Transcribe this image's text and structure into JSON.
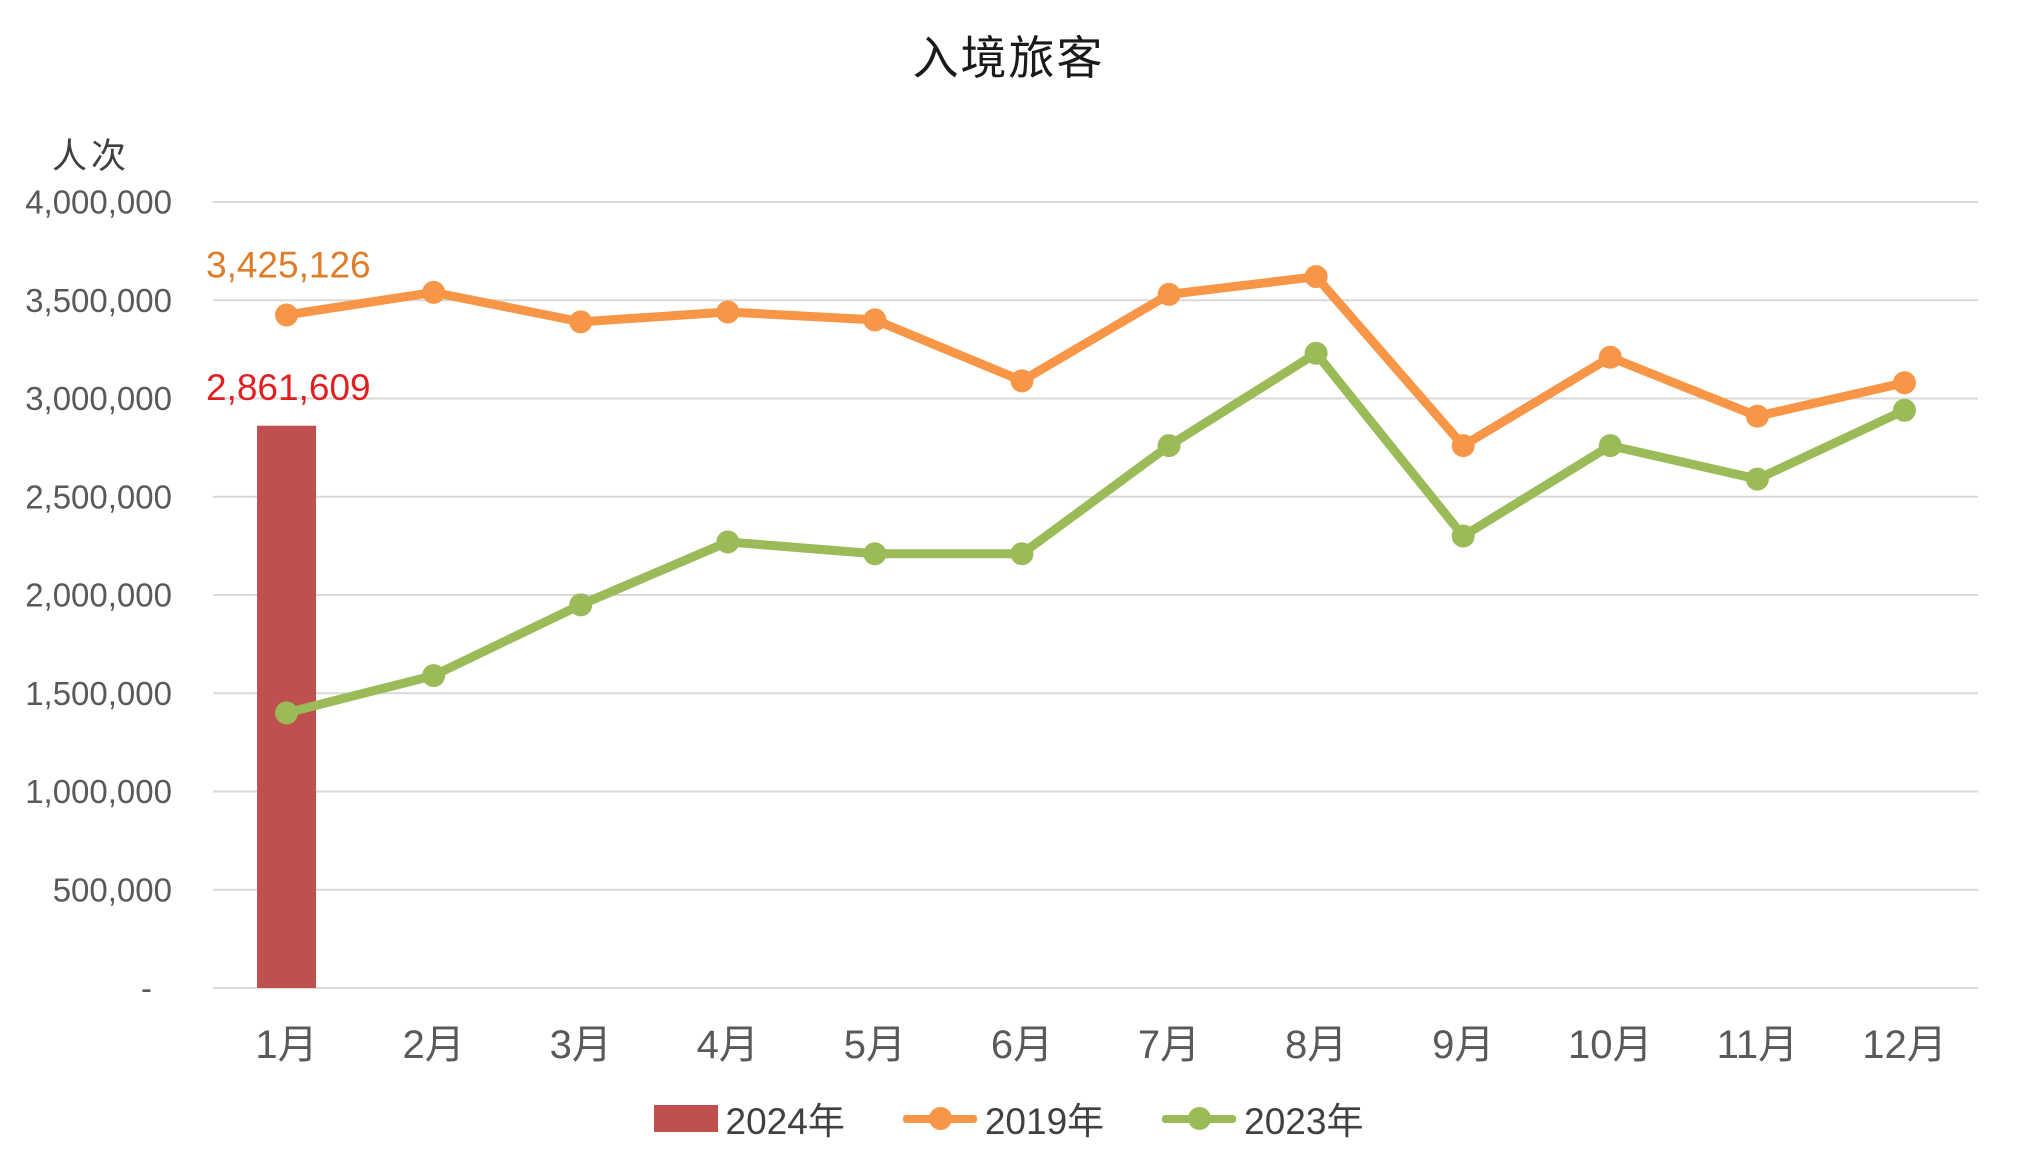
{
  "chart_data": {
    "type": "combo",
    "title": "入境旅客",
    "y_axis_unit": "人次",
    "categories": [
      "1月",
      "2月",
      "3月",
      "4月",
      "5月",
      "6月",
      "7月",
      "8月",
      "9月",
      "10月",
      "11月",
      "12月"
    ],
    "y_axis": {
      "min": 0,
      "max": 4000000,
      "step": 500000,
      "tick_labels_top_to_bottom": [
        "4,000,000",
        "3,500,000",
        "3,000,000",
        "2,500,000",
        "2,000,000",
        "1,500,000",
        "1,000,000",
        "500,000",
        "-"
      ]
    },
    "grid": true,
    "legend_position": "bottom",
    "series": [
      {
        "name": "2024年",
        "type": "bar",
        "color": "#C0504D",
        "values": [
          2861609,
          null,
          null,
          null,
          null,
          null,
          null,
          null,
          null,
          null,
          null,
          null
        ]
      },
      {
        "name": "2019年",
        "type": "line",
        "color": "#F79646",
        "values": [
          3425126,
          3540000,
          3390000,
          3440000,
          3400000,
          3090000,
          3530000,
          3620000,
          2760000,
          3210000,
          2910000,
          3080000
        ]
      },
      {
        "name": "2023年",
        "type": "line",
        "color": "#9BBB59",
        "values": [
          1400000,
          1590000,
          1950000,
          2270000,
          2210000,
          2210000,
          2760000,
          3230000,
          2300000,
          2760000,
          2590000,
          2940000
        ]
      }
    ],
    "data_labels": [
      {
        "series": "2019年",
        "category": "1月",
        "text": "3,425,126",
        "color": "#DE7C28"
      },
      {
        "series": "2024年",
        "category": "1月",
        "text": "2,861,609",
        "color": "#E02020"
      }
    ]
  },
  "colors": {
    "axis_text": "#595959",
    "gridline": "#D9D9D9",
    "legend_text": "#404040"
  }
}
